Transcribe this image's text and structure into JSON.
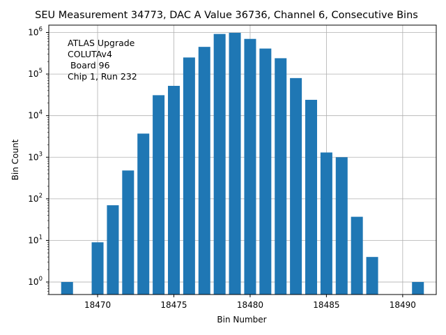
{
  "chart_data": {
    "type": "bar",
    "title": "SEU Measurement 34773, DAC A Value 36736, Channel 6, Consecutive Bins",
    "xlabel": "Bin Number",
    "ylabel": "Bin Count",
    "yscale": "log",
    "grid": true,
    "bar_color": "#1f77b4",
    "xlim": [
      18466.8,
      18492.2
    ],
    "ylim": [
      0.5,
      1500000
    ],
    "x_ticks": [
      18470,
      18475,
      18480,
      18485,
      18490
    ],
    "y_ticks": [
      {
        "value": 1,
        "base": "10",
        "exp": "0"
      },
      {
        "value": 10,
        "base": "10",
        "exp": "1"
      },
      {
        "value": 100,
        "base": "10",
        "exp": "2"
      },
      {
        "value": 1000,
        "base": "10",
        "exp": "3"
      },
      {
        "value": 10000,
        "base": "10",
        "exp": "4"
      },
      {
        "value": 100000,
        "base": "10",
        "exp": "5"
      },
      {
        "value": 1000000,
        "base": "10",
        "exp": "6"
      }
    ],
    "annotation": [
      "ATLAS Upgrade",
      "COLUTAv4",
      " Board 96",
      "Chip 1, Run 232"
    ],
    "annotation_position": "top-left",
    "bars": [
      {
        "x": 18468,
        "value": 1
      },
      {
        "x": 18470,
        "value": 9
      },
      {
        "x": 18471,
        "value": 70
      },
      {
        "x": 18472,
        "value": 480
      },
      {
        "x": 18473,
        "value": 3700
      },
      {
        "x": 18474,
        "value": 31000
      },
      {
        "x": 18475,
        "value": 52000
      },
      {
        "x": 18476,
        "value": 250000
      },
      {
        "x": 18477,
        "value": 450000
      },
      {
        "x": 18478,
        "value": 920000
      },
      {
        "x": 18479,
        "value": 980000
      },
      {
        "x": 18480,
        "value": 700000
      },
      {
        "x": 18481,
        "value": 410000
      },
      {
        "x": 18482,
        "value": 240000
      },
      {
        "x": 18483,
        "value": 80000
      },
      {
        "x": 18484,
        "value": 24000
      },
      {
        "x": 18485,
        "value": 1300
      },
      {
        "x": 18486,
        "value": 1000
      },
      {
        "x": 18487,
        "value": 37
      },
      {
        "x": 18488,
        "value": 4
      },
      {
        "x": 18491,
        "value": 1
      }
    ]
  }
}
